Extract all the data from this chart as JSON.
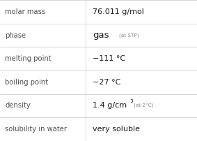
{
  "rows": [
    {
      "label": "molar mass",
      "value": "76.011 g/mol",
      "type": "simple"
    },
    {
      "label": "phase",
      "value": "gas",
      "type": "phase",
      "note": "(at STP)"
    },
    {
      "label": "melting point",
      "value": "−111 °C",
      "type": "simple"
    },
    {
      "label": "boiling point",
      "value": "−27 °C",
      "type": "simple"
    },
    {
      "label": "density",
      "value": "1.4 g/cm",
      "type": "density",
      "sup": "3",
      "note": "(at 2°C)"
    },
    {
      "label": "solubility in water",
      "value": "very soluble",
      "type": "simple"
    }
  ],
  "bg_color": "#ffffff",
  "line_color": "#d0d0d0",
  "label_color": "#505050",
  "value_color": "#1a1a1a",
  "note_color": "#888888",
  "col_split": 0.435,
  "label_fs": 7.2,
  "value_fs": 8.0,
  "phase_fs": 9.5,
  "note_fs": 5.2,
  "sup_fs": 5.2
}
